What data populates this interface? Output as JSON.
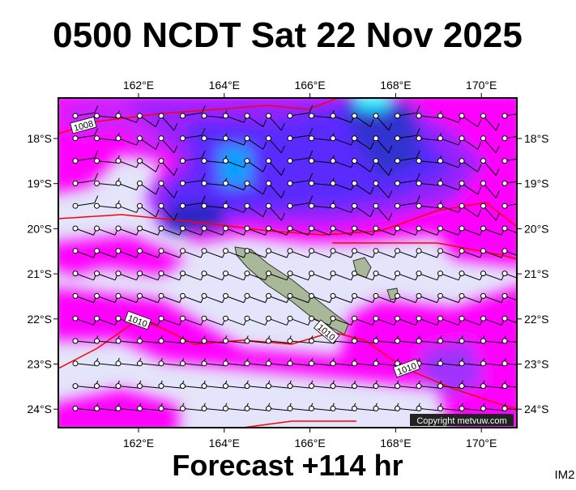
{
  "title": "0500 NCDT Sat 22 Nov 2025",
  "lon_labels": [
    "162°E",
    "164°E",
    "166°E",
    "168°E",
    "170°E"
  ],
  "lat_labels": [
    "18°S",
    "19°S",
    "20°S",
    "21°S",
    "22°S",
    "23°S",
    "24°S"
  ],
  "isobar_labels": [
    "1008",
    "1010",
    "1010",
    "1010"
  ],
  "copyright": "Copyright metvuw.com",
  "footer": "Forecast +114 hr",
  "image_id": "IM2"
}
